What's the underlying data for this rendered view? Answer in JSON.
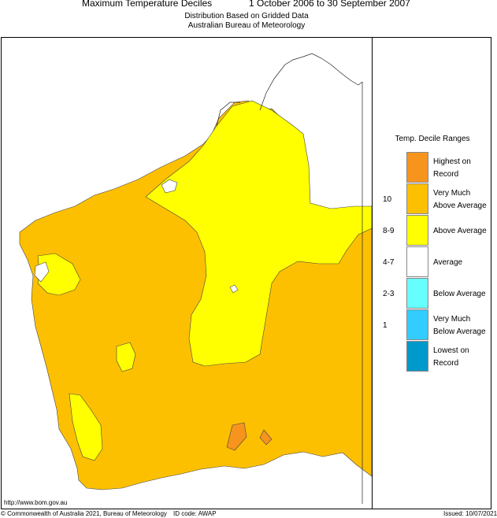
{
  "header": {
    "title_left": "Maximum Temperature Deciles",
    "title_right": "1 October 2006 to 30 September 2007",
    "subtitle_1": "Distribution Based on Gridded Data",
    "subtitle_2": "Australian Bureau of Meteorology"
  },
  "legend": {
    "title": "Temp. Decile Ranges",
    "items": [
      {
        "line1": "Highest on",
        "line2": "Record",
        "decile": "",
        "color": "#f7941d"
      },
      {
        "line1": "Very Much",
        "line2": "Above Average",
        "decile": "10",
        "color": "#fdc000"
      },
      {
        "line1": "Above Average",
        "line2": "",
        "decile": "8-9",
        "color": "#ffff00"
      },
      {
        "line1": "Average",
        "line2": "",
        "decile": "4-7",
        "color": "#ffffff"
      },
      {
        "line1": "Below Average",
        "line2": "",
        "decile": "2-3",
        "color": "#66ffff"
      },
      {
        "line1": "Very Much",
        "line2": "Below Average",
        "decile": "1",
        "color": "#33ccff"
      },
      {
        "line1": "Lowest on",
        "line2": "Record",
        "decile": "",
        "color": "#0099cc"
      }
    ]
  },
  "footer": {
    "url": "http://www.bom.gov.au",
    "copyright": "© Commonwealth of Australia 2021, Bureau of Meteorology",
    "id_code": "ID code: AWAP",
    "issued": "Issued: 10/07/2021"
  },
  "colors": {
    "very_much_above": "#fdc000",
    "above": "#ffff00",
    "highest": "#f7941d",
    "average": "#ffffff"
  }
}
